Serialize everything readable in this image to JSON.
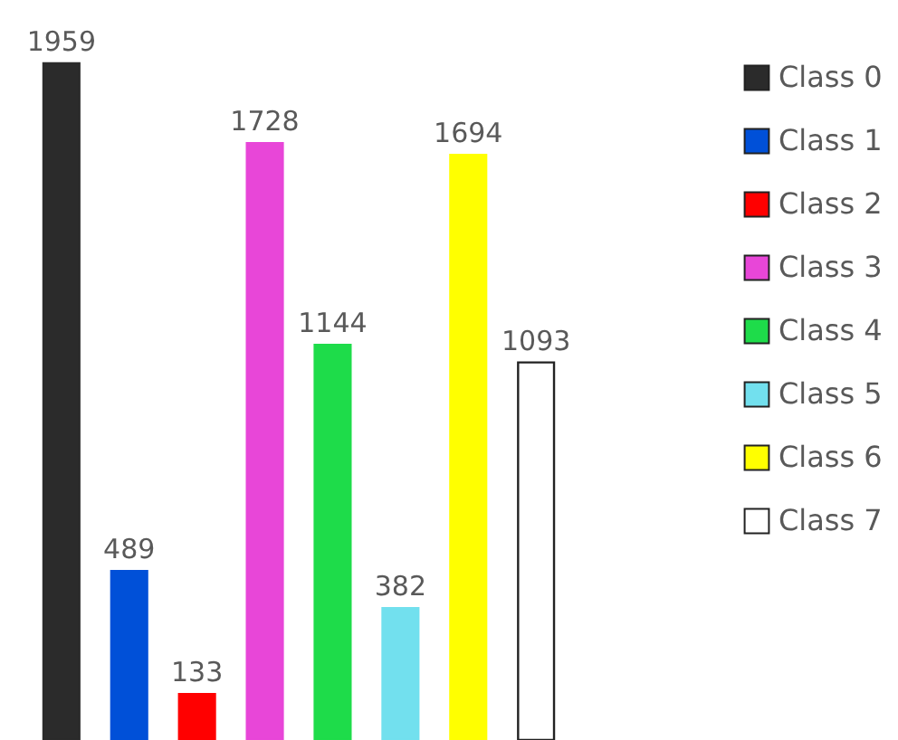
{
  "chart_data": {
    "type": "bar",
    "categories": [
      null,
      null,
      null,
      null,
      null,
      null,
      null,
      null
    ],
    "stacked": true,
    "series": [
      {
        "name": "Class 0",
        "color": "#2b2b2b",
        "values": [
          1959,
          null,
          null,
          null,
          null,
          null,
          null,
          null
        ]
      },
      {
        "name": "Class 1",
        "color": "#0050d8",
        "values": [
          null,
          489,
          null,
          null,
          null,
          null,
          null,
          null
        ]
      },
      {
        "name": "Class 2",
        "color": "#ff0000",
        "values": [
          null,
          null,
          133,
          null,
          null,
          null,
          null,
          null
        ]
      },
      {
        "name": "Class 3",
        "color": "#e846d8",
        "values": [
          null,
          null,
          null,
          1728,
          null,
          null,
          null,
          null
        ]
      },
      {
        "name": "Class 4",
        "color": "#1edc4a",
        "values": [
          null,
          null,
          null,
          null,
          1144,
          null,
          null,
          null
        ]
      },
      {
        "name": "Class 5",
        "color": "#72e0ee",
        "values": [
          null,
          null,
          null,
          null,
          null,
          382,
          null,
          null
        ]
      },
      {
        "name": "Class 6",
        "color": "#ffff00",
        "values": [
          null,
          null,
          null,
          null,
          null,
          null,
          1694,
          null
        ]
      },
      {
        "name": "Class 7",
        "color": "#ffffff",
        "values": [
          null,
          null,
          null,
          null,
          null,
          null,
          null,
          1093
        ]
      }
    ],
    "data_labels": true,
    "legend": "right"
  }
}
